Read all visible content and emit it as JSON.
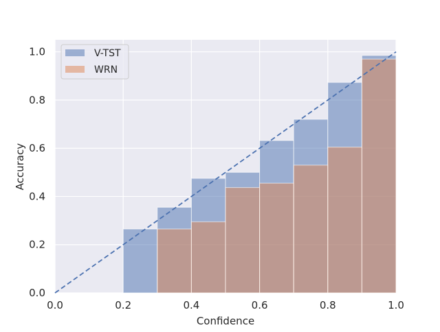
{
  "chart_data": {
    "type": "bar",
    "title": "",
    "xlabel": "Confidence",
    "ylabel": "Accuracy",
    "xlim": [
      0.0,
      1.0
    ],
    "ylim": [
      0.0,
      1.05
    ],
    "bin_edges": [
      0.0,
      0.1,
      0.2,
      0.3,
      0.4,
      0.5,
      0.6,
      0.7,
      0.8,
      0.9,
      1.0
    ],
    "x_ticks": [
      "0.0",
      "0.2",
      "0.4",
      "0.6",
      "0.8",
      "1.0"
    ],
    "y_ticks": [
      "0.0",
      "0.2",
      "0.4",
      "0.6",
      "0.8",
      "1.0"
    ],
    "grid": true,
    "legend_position": "upper-left",
    "reference_line": {
      "style": "dashed",
      "from": [
        0.0,
        0.0
      ],
      "to": [
        1.0,
        1.0
      ],
      "color": "#4c72b0"
    },
    "series": [
      {
        "name": "V-TST",
        "color": "#4c72b0",
        "opacity": 0.5,
        "values": [
          0,
          0,
          0.265,
          0.355,
          0.475,
          0.5,
          0.632,
          0.72,
          0.873,
          0.985
        ]
      },
      {
        "name": "WRN",
        "color": "#dd8452",
        "opacity": 0.5,
        "values": [
          0,
          0,
          0,
          0.265,
          0.295,
          0.437,
          0.455,
          0.53,
          0.605,
          0.97
        ]
      }
    ],
    "background": "#eaeaf2"
  }
}
